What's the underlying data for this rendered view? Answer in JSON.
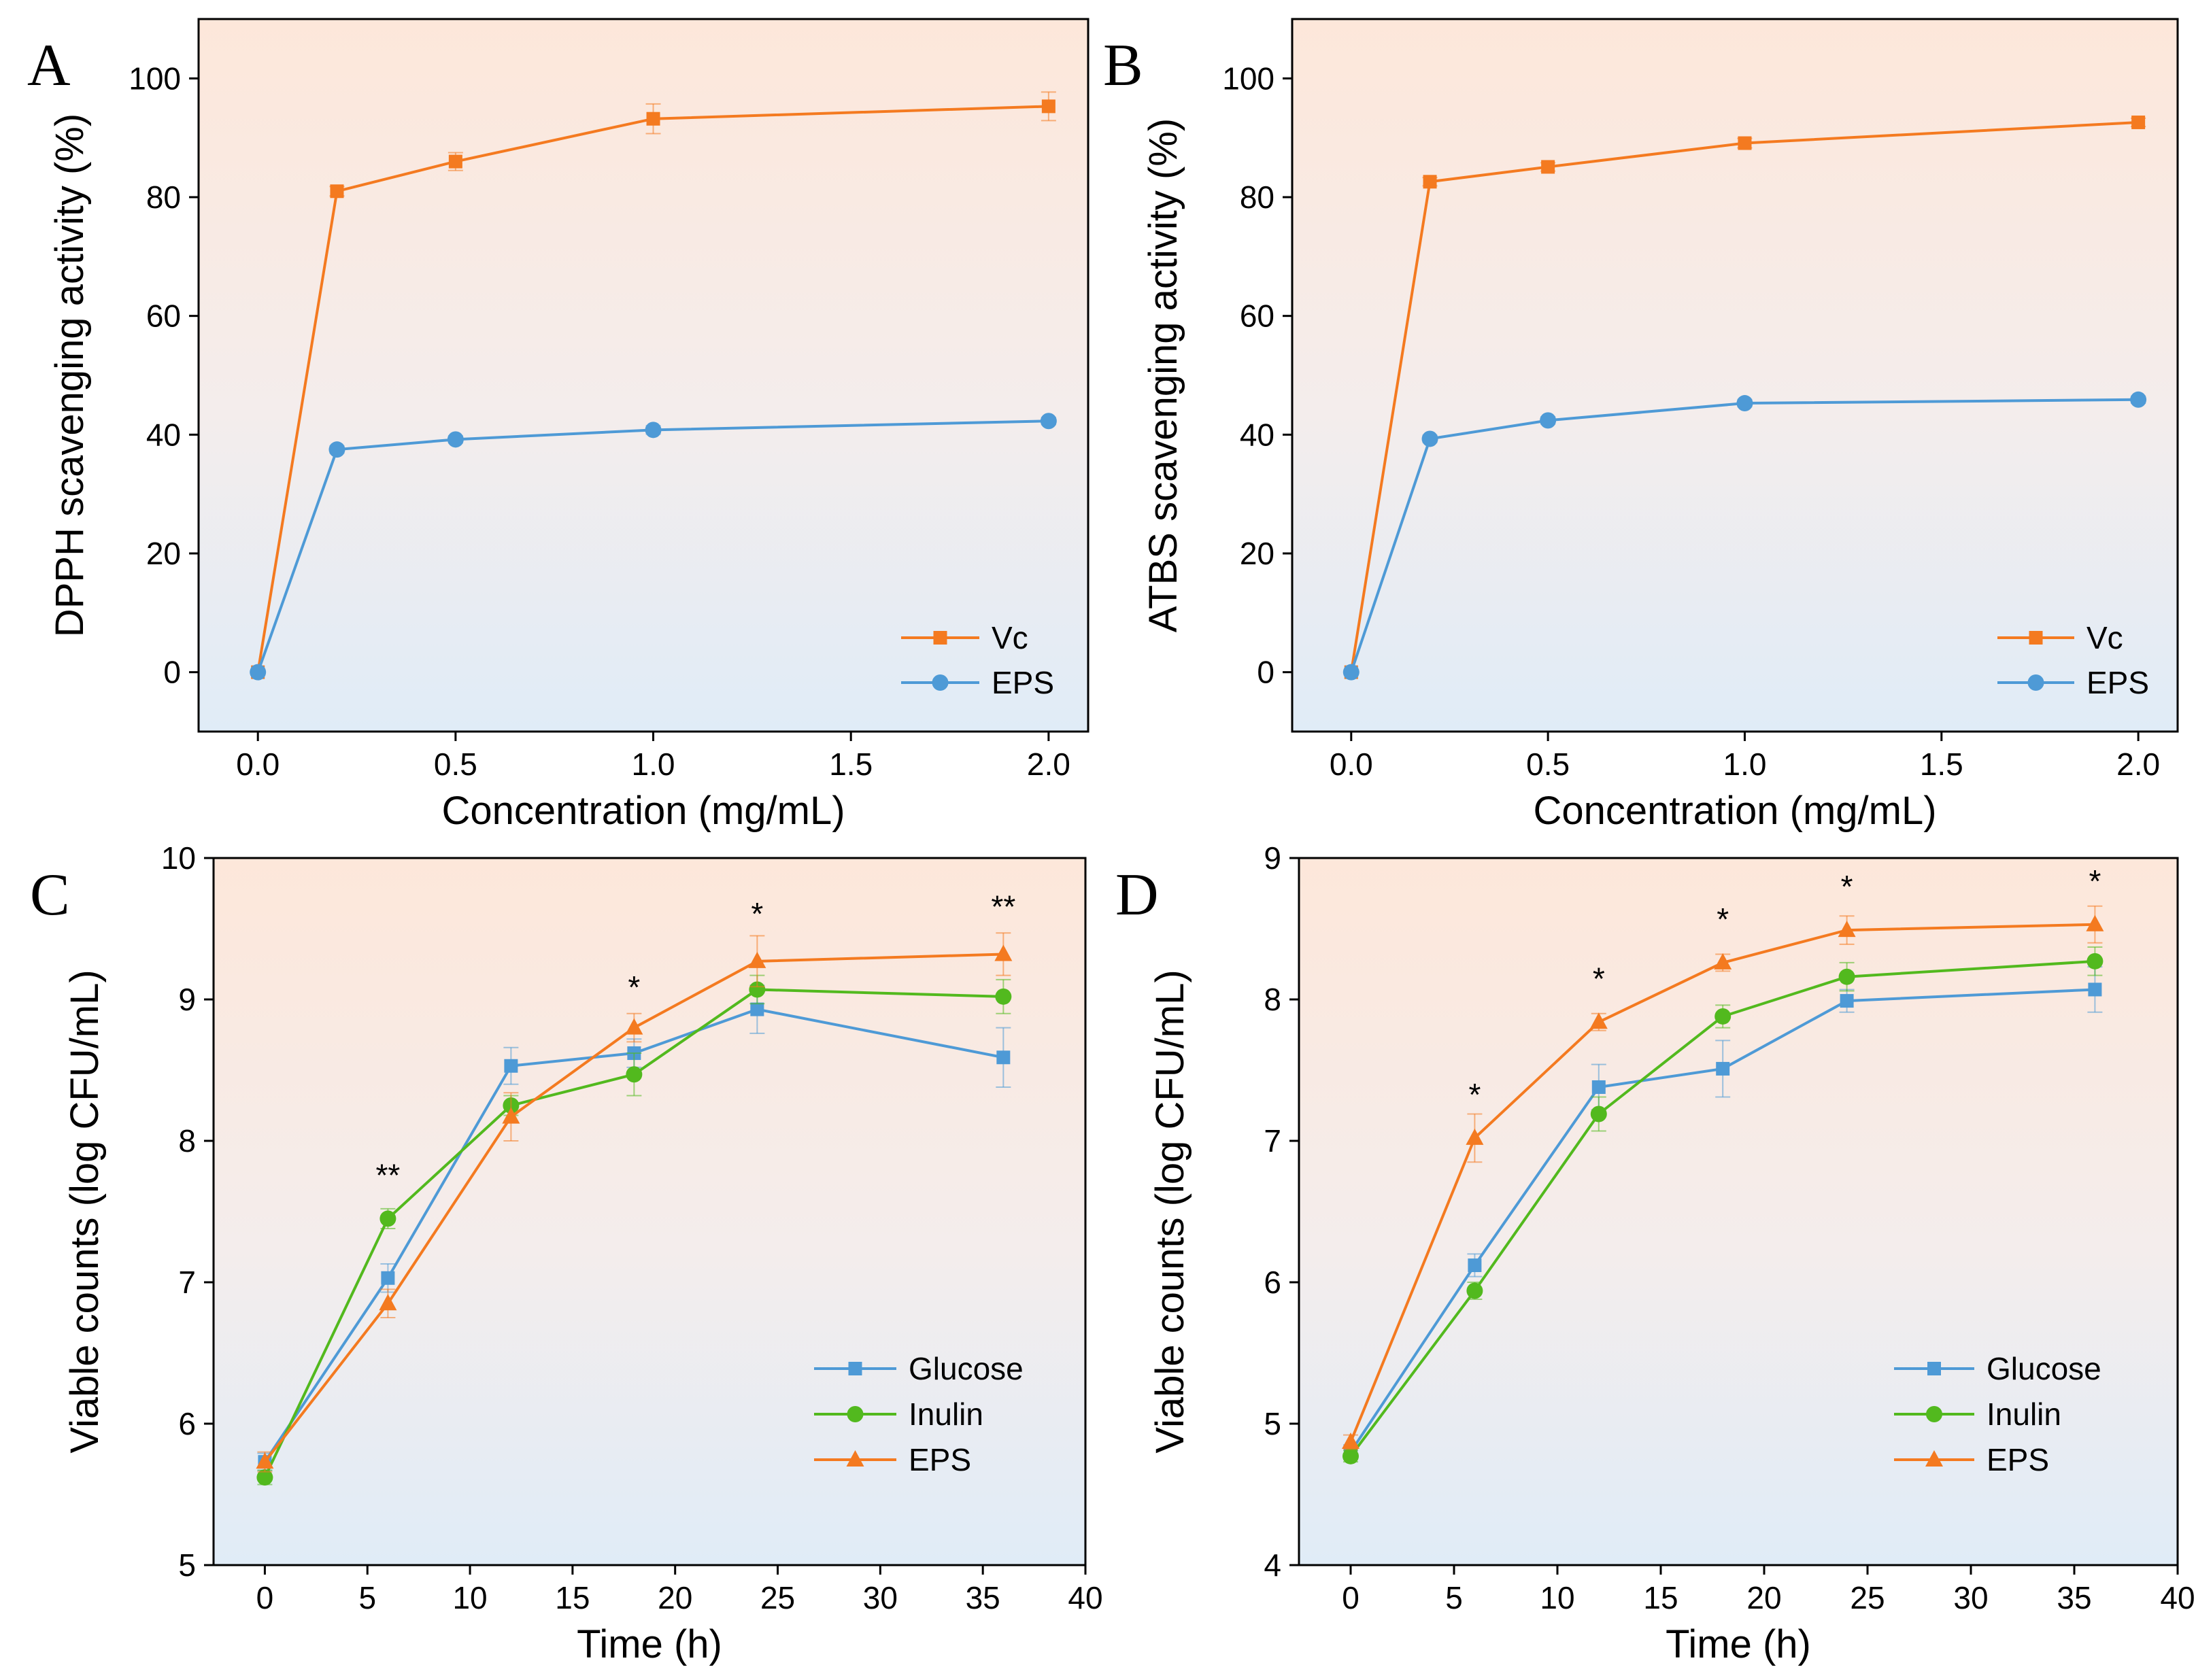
{
  "chart_data": [
    {
      "panel": "A",
      "type": "line",
      "xlabel": "Concentration (mg/mL)",
      "ylabel": "DPPH scavenging activity (%)",
      "xlim": [
        -0.15,
        2.1
      ],
      "ylim": [
        -10,
        110
      ],
      "xticks": [
        0.0,
        0.5,
        1.0,
        1.5,
        2.0
      ],
      "xtick_labels": [
        "0.0",
        "0.5",
        "1.0",
        "1.5",
        "2.0"
      ],
      "yticks": [
        0,
        20,
        40,
        60,
        80,
        100
      ],
      "ytick_labels": [
        "0",
        "20",
        "40",
        "60",
        "80",
        "100"
      ],
      "legend_position": "bottom-right",
      "series": [
        {
          "name": "Vc",
          "color": "#F47A20",
          "marker": "square",
          "x": [
            0,
            0.2,
            0.5,
            1.0,
            2.0
          ],
          "y": [
            0,
            81,
            86,
            93.2,
            95.3
          ],
          "err": [
            0.5,
            0.8,
            1.5,
            2.5,
            2.4
          ]
        },
        {
          "name": "EPS",
          "color": "#4E9AD6",
          "marker": "circle",
          "x": [
            0,
            0.2,
            0.5,
            1.0,
            2.0
          ],
          "y": [
            0,
            37.5,
            39.2,
            40.8,
            42.3
          ],
          "err": [
            0.4,
            0.6,
            0.6,
            0.7,
            0.6
          ]
        }
      ],
      "annotations": []
    },
    {
      "panel": "B",
      "type": "line",
      "xlabel": "Concentration (mg/mL)",
      "ylabel": "ATBS scavenging activity (%)",
      "xlim": [
        -0.15,
        2.1
      ],
      "ylim": [
        -10,
        110
      ],
      "xticks": [
        0.0,
        0.5,
        1.0,
        1.5,
        2.0
      ],
      "xtick_labels": [
        "0.0",
        "0.5",
        "1.0",
        "1.5",
        "2.0"
      ],
      "yticks": [
        0,
        20,
        40,
        60,
        80,
        100
      ],
      "ytick_labels": [
        "0",
        "20",
        "40",
        "60",
        "80",
        "100"
      ],
      "legend_position": "bottom-right",
      "series": [
        {
          "name": "Vc",
          "color": "#F47A20",
          "marker": "square",
          "x": [
            0,
            0.2,
            0.5,
            1.0,
            2.0
          ],
          "y": [
            0,
            82.6,
            85.1,
            89.1,
            92.6
          ],
          "err": [
            0.4,
            0.7,
            0.7,
            0.8,
            0.7
          ]
        },
        {
          "name": "EPS",
          "color": "#4E9AD6",
          "marker": "circle",
          "x": [
            0,
            0.2,
            0.5,
            1.0,
            2.0
          ],
          "y": [
            0,
            39.3,
            42.4,
            45.3,
            45.9
          ],
          "err": [
            0.4,
            0.6,
            0.6,
            0.6,
            0.6
          ]
        }
      ],
      "annotations": []
    },
    {
      "panel": "C",
      "type": "line",
      "xlabel": "Time (h)",
      "ylabel": "Viable counts (log CFU/mL)",
      "xlim": [
        -2.5,
        40
      ],
      "ylim": [
        5,
        10
      ],
      "xticks": [
        0,
        5,
        10,
        15,
        20,
        25,
        30,
        35,
        40
      ],
      "xtick_labels": [
        "0",
        "5",
        "10",
        "15",
        "20",
        "25",
        "30",
        "35",
        "40"
      ],
      "yticks": [
        5,
        6,
        7,
        8,
        9,
        10
      ],
      "ytick_labels": [
        "5",
        "6",
        "7",
        "8",
        "9",
        "10"
      ],
      "legend_position": "bottom-right",
      "series": [
        {
          "name": "Glucose",
          "color": "#4E9AD6",
          "marker": "square",
          "x": [
            0,
            6,
            12,
            18,
            24,
            36
          ],
          "y": [
            5.73,
            7.03,
            8.53,
            8.62,
            8.93,
            8.59
          ],
          "err": [
            0.06,
            0.1,
            0.13,
            0.1,
            0.17,
            0.21
          ]
        },
        {
          "name": "Inulin",
          "color": "#52B91E",
          "marker": "circle",
          "x": [
            0,
            6,
            12,
            18,
            24,
            36
          ],
          "y": [
            5.62,
            7.45,
            8.25,
            8.47,
            9.07,
            9.02
          ],
          "err": [
            0.05,
            0.07,
            0.07,
            0.15,
            0.1,
            0.12
          ]
        },
        {
          "name": "EPS",
          "color": "#F47A20",
          "marker": "triangle",
          "x": [
            0,
            6,
            12,
            18,
            24,
            36
          ],
          "y": [
            5.73,
            6.85,
            8.17,
            8.8,
            9.27,
            9.32
          ],
          "err": [
            0.07,
            0.1,
            0.17,
            0.1,
            0.18,
            0.15
          ]
        }
      ],
      "annotations": [
        {
          "x": 6,
          "y": 7.68,
          "text": "**"
        },
        {
          "x": 18,
          "y": 9.01,
          "text": "*"
        },
        {
          "x": 24,
          "y": 9.53,
          "text": "*"
        },
        {
          "x": 36,
          "y": 9.58,
          "text": "**"
        }
      ]
    },
    {
      "panel": "D",
      "type": "line",
      "xlabel": "Time (h)",
      "ylabel": "Viable counts (log CFU/mL)",
      "xlim": [
        -2.5,
        40
      ],
      "ylim": [
        4,
        9
      ],
      "xticks": [
        0,
        5,
        10,
        15,
        20,
        25,
        30,
        35,
        40
      ],
      "xtick_labels": [
        "0",
        "5",
        "10",
        "15",
        "20",
        "25",
        "30",
        "35",
        "40"
      ],
      "yticks": [
        4,
        5,
        6,
        7,
        8,
        9
      ],
      "ytick_labels": [
        "4",
        "5",
        "6",
        "7",
        "8",
        "9"
      ],
      "legend_position": "bottom-right",
      "series": [
        {
          "name": "Glucose",
          "color": "#4E9AD6",
          "marker": "square",
          "x": [
            0,
            6,
            12,
            18,
            24,
            36
          ],
          "y": [
            4.8,
            6.12,
            7.38,
            7.51,
            7.99,
            8.07
          ],
          "err": [
            0.05,
            0.08,
            0.16,
            0.2,
            0.08,
            0.16
          ]
        },
        {
          "name": "Inulin",
          "color": "#52B91E",
          "marker": "circle",
          "x": [
            0,
            6,
            12,
            18,
            24,
            36
          ],
          "y": [
            4.77,
            5.94,
            7.19,
            7.88,
            8.16,
            8.27
          ],
          "err": [
            0.04,
            0.06,
            0.12,
            0.08,
            0.1,
            0.1
          ]
        },
        {
          "name": "EPS",
          "color": "#F47A20",
          "marker": "triangle",
          "x": [
            0,
            6,
            12,
            18,
            24,
            36
          ],
          "y": [
            4.87,
            7.02,
            7.84,
            8.26,
            8.49,
            8.53
          ],
          "err": [
            0.05,
            0.17,
            0.06,
            0.06,
            0.1,
            0.13
          ]
        }
      ],
      "annotations": [
        {
          "x": 6,
          "y": 7.25,
          "text": "*"
        },
        {
          "x": 12,
          "y": 8.07,
          "text": "*"
        },
        {
          "x": 18,
          "y": 8.49,
          "text": "*"
        },
        {
          "x": 24,
          "y": 8.72,
          "text": "*"
        },
        {
          "x": 36,
          "y": 8.76,
          "text": "*"
        }
      ]
    }
  ]
}
